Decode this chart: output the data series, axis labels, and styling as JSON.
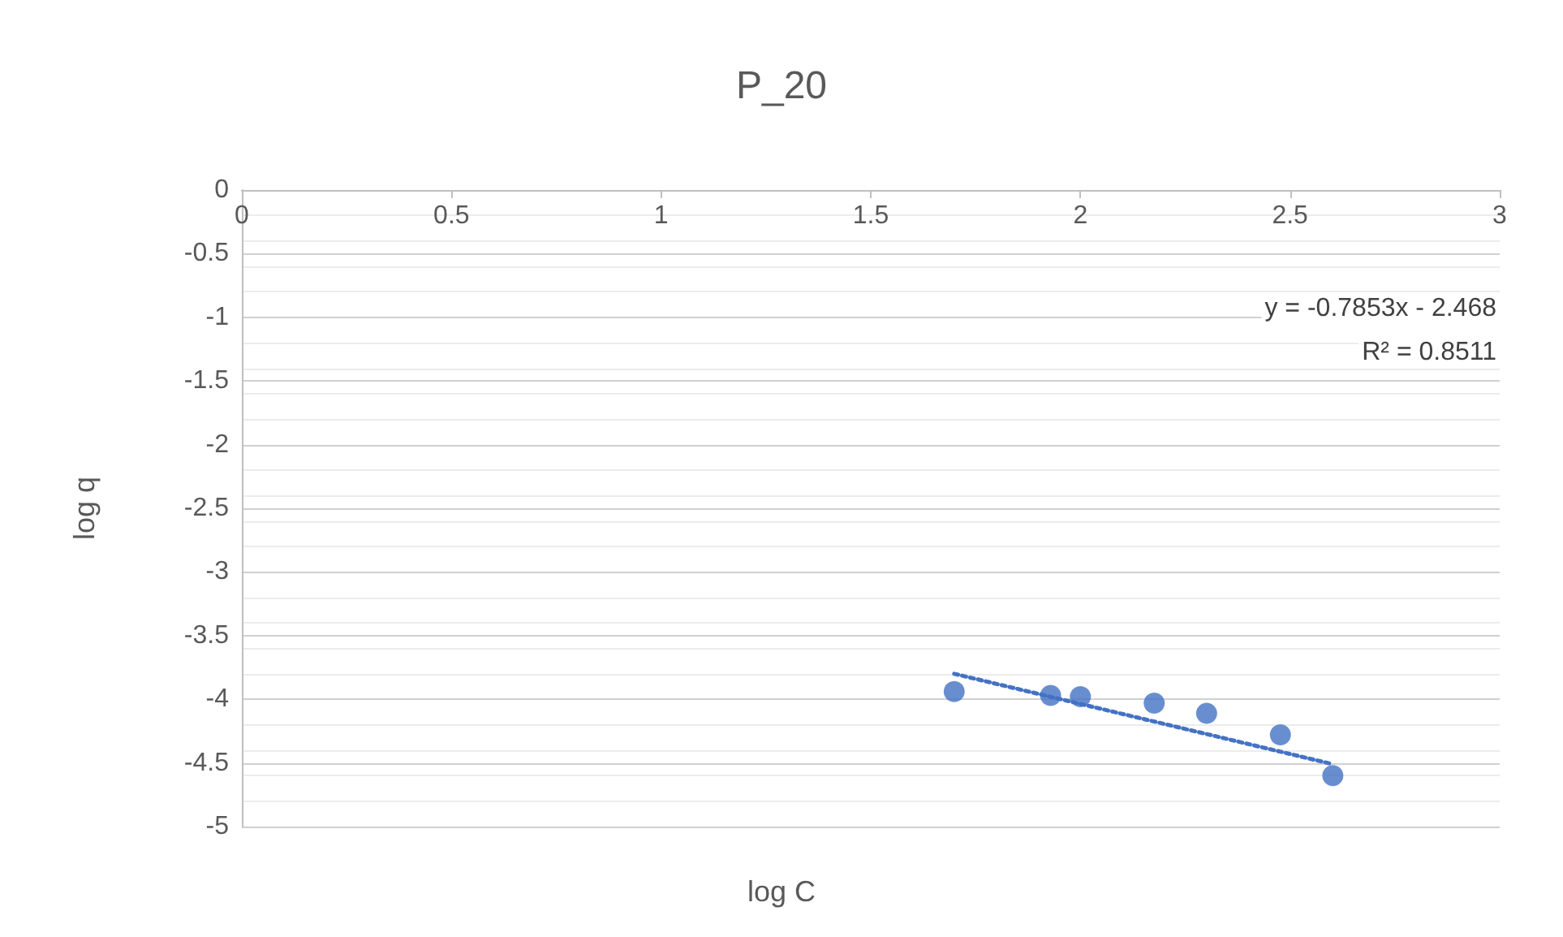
{
  "chart_data": {
    "type": "scatter",
    "title": "P_20",
    "xlabel": "log C",
    "ylabel": "log q",
    "xlim": [
      0,
      3
    ],
    "xticks": [
      0,
      0.5,
      1,
      1.5,
      2,
      2.5,
      3
    ],
    "ylim": [
      -5,
      0
    ],
    "yticks": [
      -5,
      -4.5,
      -4,
      -3.5,
      -3,
      -2.5,
      -2,
      -1.5,
      -1,
      -0.5,
      0
    ],
    "grid": "y",
    "marker": "circle",
    "series": [
      {
        "color": "#4472c4",
        "x": [
          1.699,
          1.929,
          2,
          2.176,
          2.301,
          2.477,
          2.602
        ],
        "values": [
          -3.94,
          -3.97,
          -3.98,
          -4.03,
          -4.11,
          -4.28,
          -4.6
        ]
      },
      {
        "type": "line",
        "color": "#4472c4",
        "line_style": "dotted",
        "marker": "none",
        "x": [
          1.699,
          2.602
        ],
        "values": [
          -3.8,
          -4.51
        ]
      }
    ],
    "annotations": [
      "y = -0.7853x - 2.468",
      "R² = 0.8511"
    ]
  }
}
